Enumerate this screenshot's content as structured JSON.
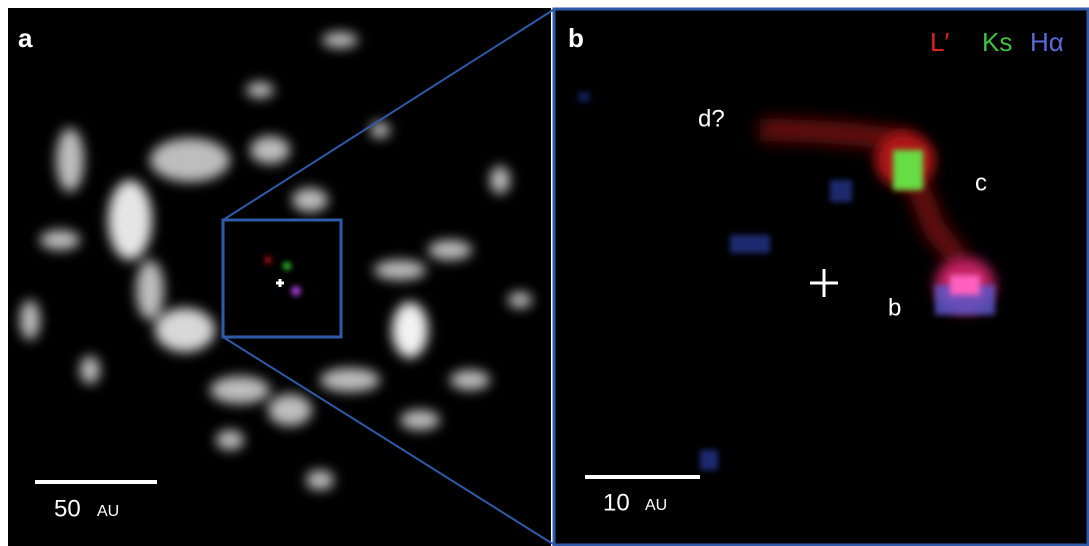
{
  "panels": [
    {
      "label": "a",
      "scale_bar": {
        "value": "50",
        "unit": "AU"
      }
    },
    {
      "label": "b",
      "scale_bar": {
        "value": "10",
        "unit": "AU"
      },
      "legend": [
        "L′",
        "Ks",
        "Hα"
      ],
      "annotations": [
        "d?",
        "c",
        "b"
      ]
    }
  ]
}
